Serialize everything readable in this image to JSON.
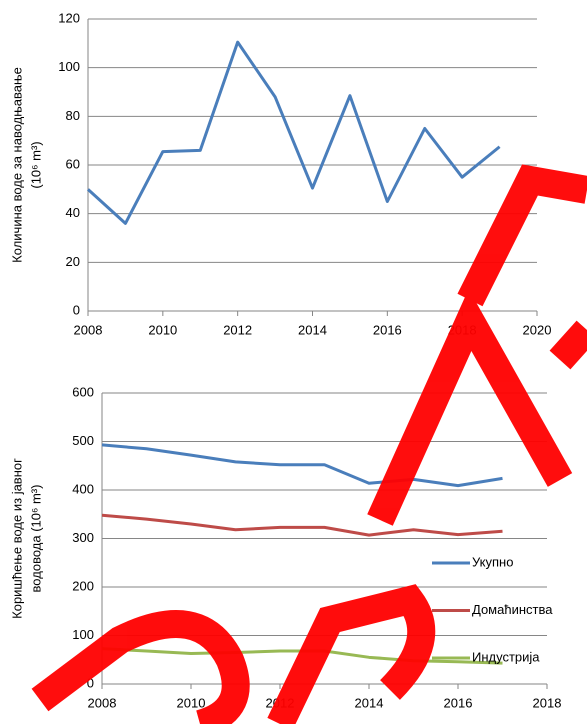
{
  "chart_data": [
    {
      "type": "line",
      "ylabel": [
        "Количина воде за наводњавање",
        "(10⁶ m³)"
      ],
      "x": [
        2008,
        2009,
        2010,
        2011,
        2012,
        2013,
        2014,
        2015,
        2016,
        2017,
        2018,
        2019
      ],
      "series": [
        {
          "name": null,
          "color": "#4a7ebb",
          "values": [
            50,
            36,
            65.5,
            66,
            110.5,
            88,
            50.5,
            88.5,
            45,
            75,
            55,
            67.5
          ]
        }
      ],
      "xlim": [
        2008,
        2020
      ],
      "xticks": [
        2008,
        2010,
        2012,
        2014,
        2016,
        2018,
        2020
      ],
      "ylim": [
        0,
        120
      ],
      "yticks": [
        0,
        20,
        40,
        60,
        80,
        100,
        120
      ],
      "grid": true,
      "legend": false
    },
    {
      "type": "line",
      "ylabel": [
        "Коришћење воде из јавног",
        "водовода (10⁶ m³)"
      ],
      "x": [
        2008,
        2009,
        2010,
        2011,
        2012,
        2013,
        2014,
        2015,
        2016,
        2017
      ],
      "series": [
        {
          "name": "Укупно",
          "color": "#4a7ebb",
          "values": [
            493,
            485,
            472,
            458,
            452,
            452,
            414,
            422,
            409,
            424
          ]
        },
        {
          "name": "Домаћинства",
          "color": "#be4b48",
          "values": [
            348,
            340,
            330,
            318,
            323,
            323,
            307,
            318,
            308,
            315
          ]
        },
        {
          "name": "Индустрија",
          "color": "#98b954",
          "values": [
            73,
            68,
            63,
            65,
            68,
            68,
            55,
            48,
            46,
            43
          ]
        }
      ],
      "xlim": [
        2008,
        2018
      ],
      "xticks": [
        2008,
        2010,
        2012,
        2014,
        2016,
        2018
      ],
      "ylim": [
        0,
        600
      ],
      "yticks": [
        0,
        100,
        200,
        300,
        400,
        500,
        600
      ],
      "grid": true,
      "legend": "right"
    }
  ]
}
